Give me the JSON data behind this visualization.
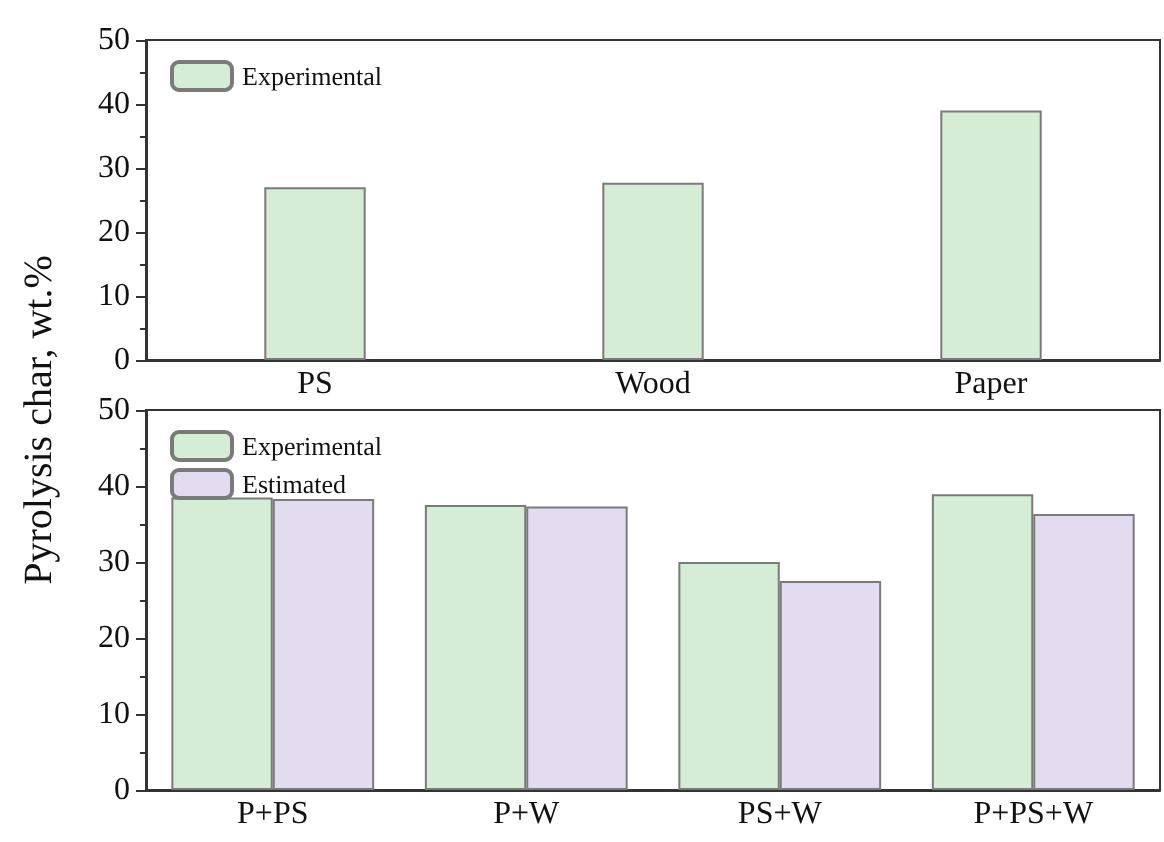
{
  "chart_data": [
    {
      "type": "bar",
      "ylabel": "Pyrolysis char, wt.%",
      "categories": [
        "PS",
        "Wood",
        "Paper"
      ],
      "series": [
        {
          "name": "Experimental",
          "color": "#d5edd5",
          "values": [
            27,
            27.7,
            39
          ]
        }
      ],
      "ylim": [
        0,
        50
      ],
      "yticks": [
        0,
        10,
        20,
        30,
        40,
        50
      ],
      "grid": false,
      "legend": "top left"
    },
    {
      "type": "bar",
      "categories": [
        "P+PS",
        "P+W",
        "PS+W",
        "P+PS+W"
      ],
      "series": [
        {
          "name": "Experimental",
          "color": "#d5edd5",
          "values": [
            38.5,
            37.5,
            30,
            38.9
          ]
        },
        {
          "name": "Estimated",
          "color": "#e3dbef",
          "values": [
            38.3,
            37.3,
            27.5,
            36.3
          ]
        }
      ],
      "ylim": [
        0,
        50
      ],
      "yticks": [
        0,
        10,
        20,
        30,
        40,
        50
      ],
      "grid": false,
      "legend": "top left"
    }
  ]
}
